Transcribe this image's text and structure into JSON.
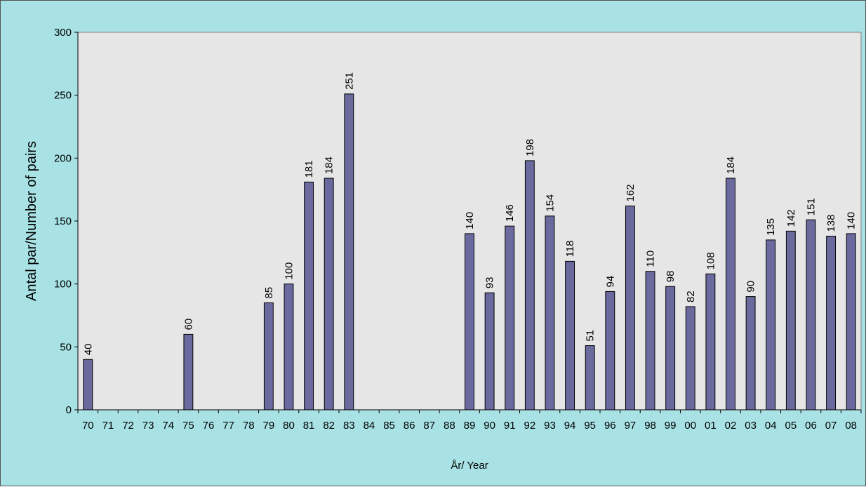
{
  "chart_data": {
    "type": "bar",
    "title": "",
    "xlabel": "År/ Year",
    "ylabel": "Antal par/Number of pairs",
    "ylim": [
      0,
      300
    ],
    "yticks": [
      0,
      50,
      100,
      150,
      200,
      250,
      300
    ],
    "grid": false,
    "legend": "none",
    "categories": [
      "70",
      "71",
      "72",
      "73",
      "74",
      "75",
      "76",
      "77",
      "78",
      "79",
      "80",
      "81",
      "82",
      "83",
      "84",
      "85",
      "86",
      "87",
      "88",
      "89",
      "90",
      "91",
      "92",
      "93",
      "94",
      "95",
      "96",
      "97",
      "98",
      "99",
      "00",
      "01",
      "02",
      "03",
      "04",
      "05",
      "06",
      "07",
      "08"
    ],
    "values": [
      40,
      null,
      null,
      null,
      null,
      60,
      null,
      null,
      null,
      85,
      100,
      181,
      184,
      251,
      null,
      null,
      null,
      null,
      null,
      140,
      93,
      146,
      198,
      154,
      118,
      51,
      94,
      162,
      110,
      98,
      82,
      108,
      184,
      90,
      135,
      142,
      151,
      138,
      140
    ]
  },
  "colors": {
    "background": "#a8e2e4",
    "plot_area": "#e6e6e6",
    "bar_fill": "#6a6a9e",
    "bar_stroke": "#000000"
  }
}
